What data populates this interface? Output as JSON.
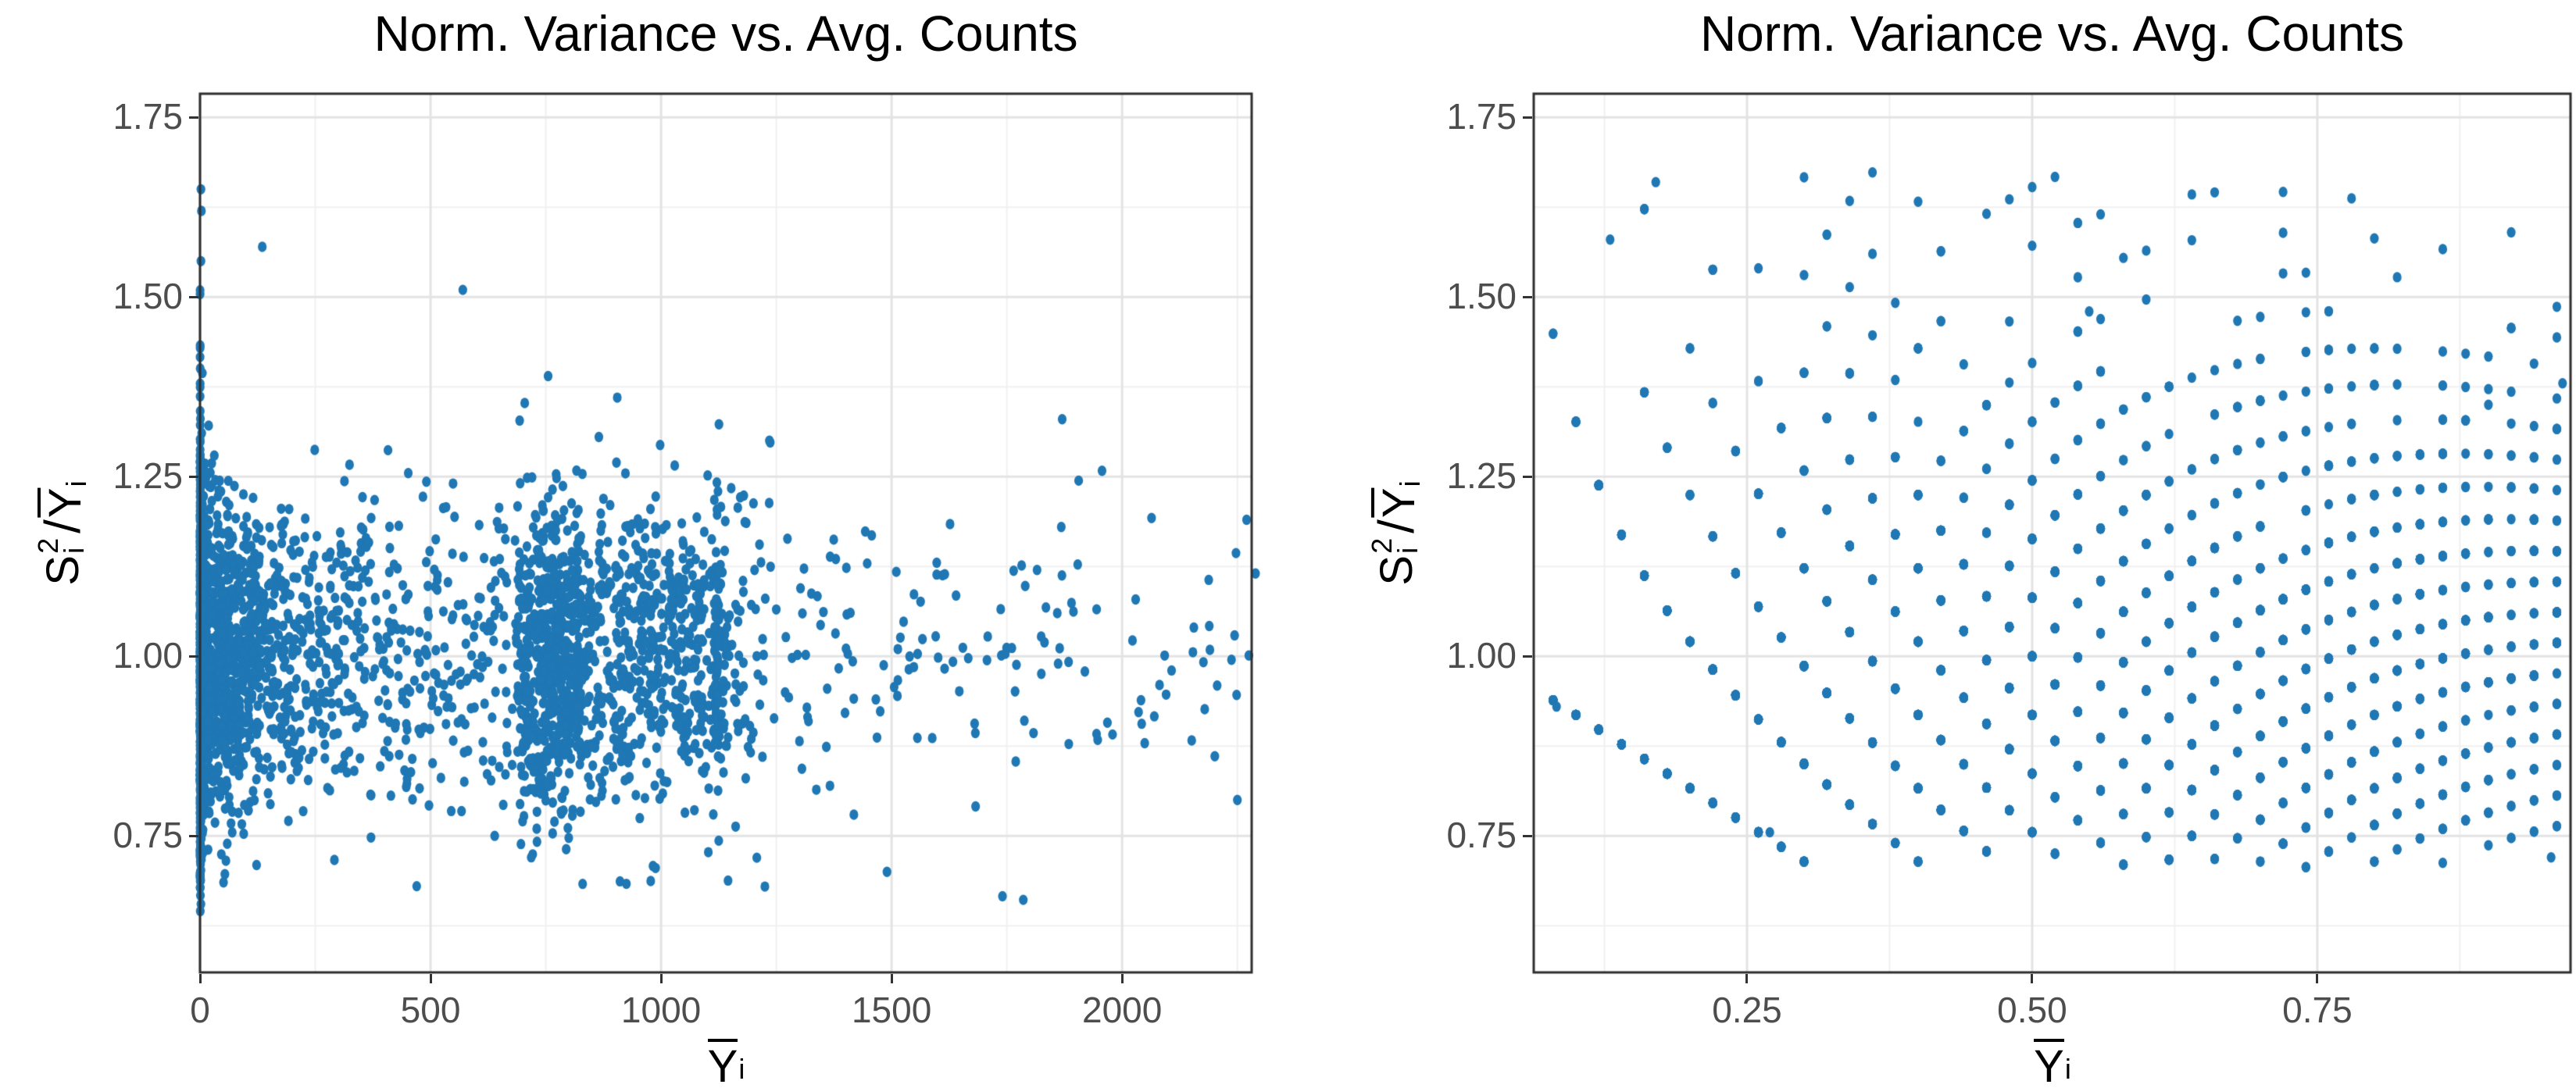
{
  "figure": {
    "background": "#ffffff"
  },
  "chart_data": [
    {
      "type": "scatter",
      "title": "Norm. Variance vs. Avg. Counts",
      "xlabel_parts": {
        "base": "Y",
        "sub": "i"
      },
      "ylabel_parts": {
        "s": "S",
        "sup": "2",
        "sub": "i",
        "slash": "/",
        "y": "Y",
        "ysub": "i"
      },
      "x_ticks": [
        {
          "v": 0,
          "label": "0"
        },
        {
          "v": 500,
          "label": "500"
        },
        {
          "v": 1000,
          "label": "1000"
        },
        {
          "v": 1500,
          "label": "1500"
        },
        {
          "v": 2000,
          "label": "2000"
        }
      ],
      "y_ticks": [
        {
          "v": 0.75,
          "label": "0.75"
        },
        {
          "v": 1.0,
          "label": "1.00"
        },
        {
          "v": 1.25,
          "label": "1.25"
        },
        {
          "v": 1.5,
          "label": "1.50"
        },
        {
          "v": 1.75,
          "label": "1.75"
        }
      ],
      "x_minor": [
        250,
        750,
        1250,
        1750,
        2250
      ],
      "y_minor": [
        0.625,
        0.875,
        1.125,
        1.375,
        1.625
      ],
      "xlim": [
        0,
        2281
      ],
      "ylim": [
        0.56,
        1.783
      ],
      "grid": {
        "major_color": "#e3e3e3",
        "minor_color": "#f0f0f0",
        "major_width": 3,
        "minor_width": 2
      },
      "panel_border_color": "#2d2d2d",
      "tick_mark_color": "#333333",
      "tick_label_color": "#4d4d4d",
      "point_color": "#1f77b4",
      "point_rx": 5.6,
      "point_ry": 6.7,
      "sim": {
        "kind": "normal_approx",
        "seed": 420024,
        "samples_per_gene": 165,
        "y_clamp": [
          0.64,
          1.66
        ],
        "groups": [
          {
            "count": 1050,
            "dist": "log",
            "min": 0.12,
            "max": 40
          },
          {
            "count": 1000,
            "dist": "log",
            "min": 40,
            "max": 690
          },
          {
            "count": 650,
            "dist": "lin",
            "min": 690,
            "max": 830
          },
          {
            "count": 520,
            "dist": "lin",
            "min": 830,
            "max": 1120
          },
          {
            "count": 300,
            "dist": "pow",
            "min": 1120,
            "max": 2281,
            "pow": 3.2
          }
        ]
      },
      "notable_points": [
        [
          2,
          1.65
        ],
        [
          3,
          1.62
        ],
        [
          2,
          1.55
        ],
        [
          135,
          1.57
        ],
        [
          570,
          1.51
        ],
        [
          755,
          1.39
        ],
        [
          905,
          1.36
        ],
        [
          1235,
          1.3
        ],
        [
          1870,
          1.33
        ],
        [
          2270,
          1.19
        ],
        [
          2250,
          0.8
        ],
        [
          1490,
          0.7
        ],
        [
          470,
          0.68
        ],
        [
          2,
          0.655
        ]
      ]
    },
    {
      "type": "scatter",
      "title": "Norm. Variance vs. Avg. Counts",
      "xlabel_parts": {
        "base": "Y",
        "sub": "i"
      },
      "ylabel_parts": {
        "s": "S",
        "sup": "2",
        "sub": "i",
        "slash": "/",
        "y": "Y",
        "ysub": "i"
      },
      "x_ticks": [
        {
          "v": 0.25,
          "label": "0.25"
        },
        {
          "v": 0.5,
          "label": "0.50"
        },
        {
          "v": 0.75,
          "label": "0.75"
        }
      ],
      "y_ticks": [
        {
          "v": 0.75,
          "label": "0.75"
        },
        {
          "v": 1.0,
          "label": "1.00"
        },
        {
          "v": 1.25,
          "label": "1.25"
        },
        {
          "v": 1.5,
          "label": "1.50"
        },
        {
          "v": 1.75,
          "label": "1.75"
        }
      ],
      "x_minor": [
        0.125,
        0.375,
        0.625,
        0.875
      ],
      "y_minor": [
        0.625,
        0.875,
        1.125,
        1.375,
        1.625
      ],
      "xlim": [
        0.063,
        0.972
      ],
      "ylim": [
        0.56,
        1.783
      ],
      "grid": {
        "major_color": "#e3e3e3",
        "minor_color": "#f0f0f0",
        "major_width": 3,
        "minor_width": 2
      },
      "panel_border_color": "#2d2d2d",
      "tick_mark_color": "#333333",
      "tick_label_color": "#4d4d4d",
      "point_color": "#1f77b4",
      "point_rx": 5.6,
      "point_ry": 6.7,
      "sim": {
        "kind": "poisson_lattice",
        "seed": 771133,
        "target_points": 2750,
        "samples_per_point": 50,
        "lambda_min": 0.075,
        "lambda_max": 1.02,
        "lambda_pow": 0.78,
        "x_keep": [
          0.068,
          0.975
        ],
        "y_keep": [
          0.705,
          1.695
        ]
      },
      "notable_points": [
        [
          0.083,
          0.93
        ],
        [
          0.27,
          0.755
        ],
        [
          0.17,
          1.66
        ],
        [
          0.13,
          1.58
        ],
        [
          0.55,
          1.48
        ],
        [
          0.965,
          1.38
        ],
        [
          0.9,
          1.35
        ],
        [
          0.955,
          0.72
        ]
      ]
    }
  ]
}
